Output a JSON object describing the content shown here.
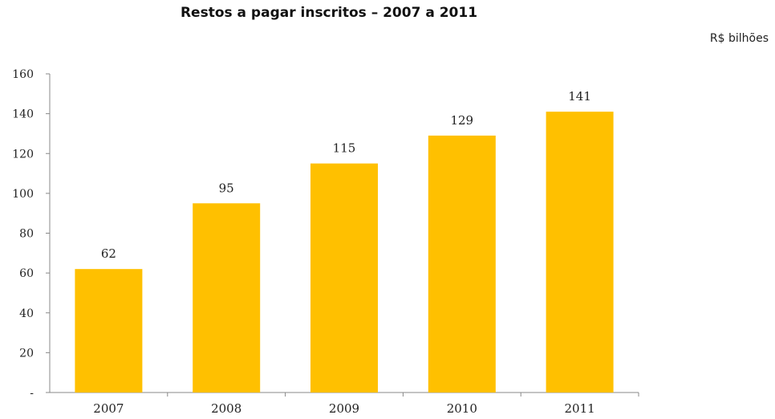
{
  "chart_data": {
    "type": "bar",
    "title": "Restos a pagar inscritos – 2007 a 2011",
    "unit_label": "R$ bilhões",
    "categories": [
      "2007",
      "2008",
      "2009",
      "2010",
      "2011"
    ],
    "values": [
      62,
      95,
      115,
      129,
      141
    ],
    "ylim": [
      0,
      160
    ],
    "y_ticks": [
      "-",
      "20",
      "40",
      "60",
      "80",
      "100",
      "120",
      "140",
      "160"
    ],
    "bar_color": "#FFC000",
    "grid": false,
    "legend": "none"
  }
}
